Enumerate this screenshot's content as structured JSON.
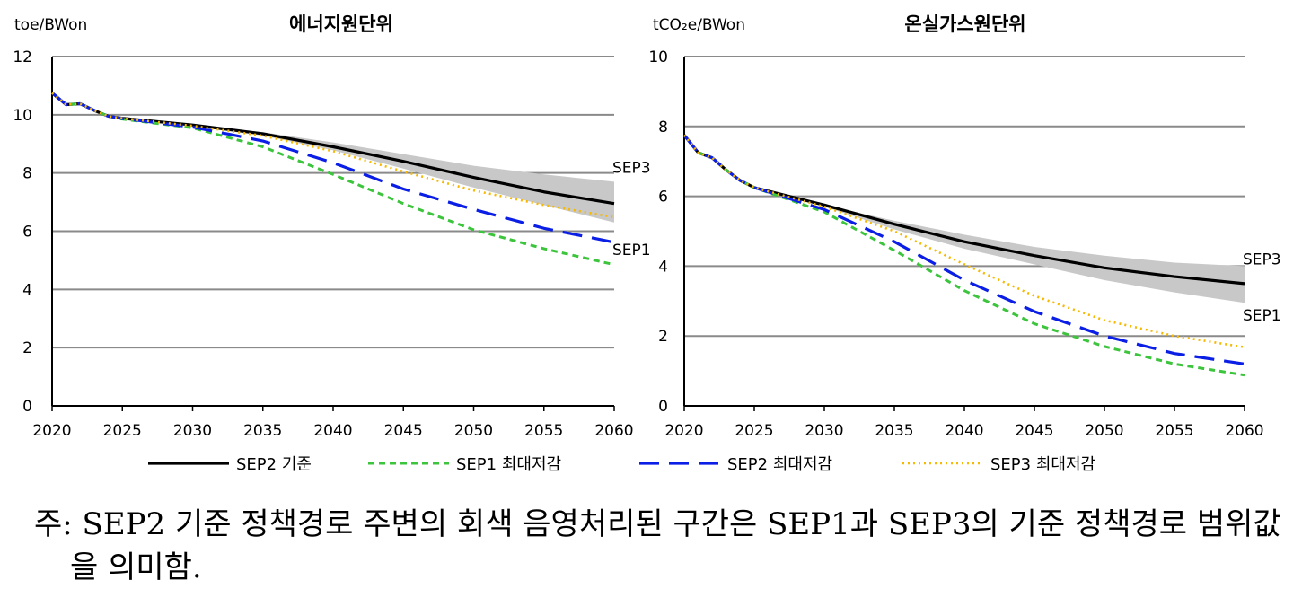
{
  "colors": {
    "SEP2 기준": "#000000",
    "SEP1 최대저감": "#3dc43d",
    "SEP2 최대저감": "#0a1ee6",
    "SEP3 최대저감": "#f6b800",
    "band": "#c8c8c8",
    "grid": "#8a8a8a"
  },
  "legend": [
    "SEP2 기준",
    "SEP1 최대저감",
    "SEP2 최대저감",
    "SEP3 최대저감"
  ],
  "chart_data": [
    {
      "type": "line",
      "title": "에너지원단위",
      "ylabel": "toe/BWon",
      "xlim": [
        2020,
        2060
      ],
      "ylim": [
        0,
        12
      ],
      "yticks": [
        0,
        2,
        4,
        6,
        8,
        10,
        12
      ],
      "xticks": [
        2020,
        2025,
        2030,
        2035,
        2040,
        2045,
        2050,
        2055,
        2060
      ],
      "grid": true,
      "annotations": [
        "SEP3",
        "SEP1"
      ],
      "band": {
        "x": [
          2020,
          2021,
          2022,
          2023,
          2024,
          2025,
          2030,
          2035,
          2040,
          2045,
          2050,
          2055,
          2060
        ],
        "upper": [
          10.75,
          10.35,
          10.38,
          10.15,
          9.95,
          9.88,
          9.66,
          9.4,
          9.05,
          8.65,
          8.25,
          7.95,
          7.7
        ],
        "lower": [
          10.75,
          10.35,
          10.38,
          10.15,
          9.95,
          9.88,
          9.6,
          9.28,
          8.78,
          8.15,
          7.5,
          6.9,
          6.3
        ]
      },
      "series": [
        {
          "name": "SEP2 기준",
          "x": [
            2020,
            2021,
            2022,
            2023,
            2024,
            2025,
            2030,
            2035,
            2040,
            2045,
            2050,
            2055,
            2060
          ],
          "values": [
            10.75,
            10.35,
            10.38,
            10.15,
            9.95,
            9.88,
            9.65,
            9.35,
            8.9,
            8.4,
            7.85,
            7.35,
            6.95
          ]
        },
        {
          "name": "SEP1 최대저감",
          "x": [
            2020,
            2021,
            2022,
            2023,
            2024,
            2025,
            2030,
            2035,
            2040,
            2045,
            2050,
            2055,
            2060
          ],
          "values": [
            10.75,
            10.35,
            10.38,
            10.15,
            9.95,
            9.85,
            9.55,
            8.9,
            7.95,
            6.95,
            6.05,
            5.4,
            4.85
          ]
        },
        {
          "name": "SEP2 최대저감",
          "x": [
            2020,
            2021,
            2022,
            2023,
            2024,
            2025,
            2030,
            2035,
            2040,
            2045,
            2050,
            2055,
            2060
          ],
          "values": [
            10.75,
            10.35,
            10.38,
            10.15,
            9.95,
            9.87,
            9.58,
            9.1,
            8.35,
            7.45,
            6.75,
            6.1,
            5.62
          ]
        },
        {
          "name": "SEP3 최대저감",
          "x": [
            2020,
            2021,
            2022,
            2023,
            2024,
            2025,
            2030,
            2035,
            2040,
            2045,
            2050,
            2055,
            2060
          ],
          "values": [
            10.75,
            10.35,
            10.38,
            10.15,
            9.95,
            9.88,
            9.62,
            9.28,
            8.75,
            8.05,
            7.4,
            6.9,
            6.48
          ]
        }
      ]
    },
    {
      "type": "line",
      "title": "온실가스원단위",
      "ylabel": "tCO₂e/BWon",
      "xlim": [
        2020,
        2060
      ],
      "ylim": [
        0,
        10
      ],
      "yticks": [
        0,
        2,
        4,
        6,
        8,
        10
      ],
      "xticks": [
        2020,
        2025,
        2030,
        2035,
        2040,
        2045,
        2050,
        2055,
        2060
      ],
      "grid": true,
      "annotations": [
        "SEP3",
        "SEP1"
      ],
      "band": {
        "x": [
          2020,
          2021,
          2022,
          2023,
          2024,
          2025,
          2030,
          2035,
          2040,
          2045,
          2050,
          2055,
          2060
        ],
        "upper": [
          7.75,
          7.25,
          7.1,
          6.75,
          6.45,
          6.25,
          5.75,
          5.3,
          4.9,
          4.55,
          4.3,
          4.1,
          4.0
        ],
        "lower": [
          7.75,
          7.25,
          7.1,
          6.75,
          6.45,
          6.25,
          5.7,
          5.05,
          4.5,
          4.05,
          3.6,
          3.25,
          2.95
        ]
      },
      "series": [
        {
          "name": "SEP2 기준",
          "x": [
            2020,
            2021,
            2022,
            2023,
            2024,
            2025,
            2030,
            2035,
            2040,
            2045,
            2050,
            2055,
            2060
          ],
          "values": [
            7.75,
            7.25,
            7.1,
            6.75,
            6.45,
            6.25,
            5.75,
            5.2,
            4.7,
            4.3,
            3.95,
            3.7,
            3.5
          ]
        },
        {
          "name": "SEP1 최대저감",
          "x": [
            2020,
            2021,
            2022,
            2023,
            2024,
            2025,
            2030,
            2035,
            2040,
            2045,
            2050,
            2055,
            2060
          ],
          "values": [
            7.75,
            7.25,
            7.1,
            6.75,
            6.45,
            6.25,
            5.55,
            4.45,
            3.3,
            2.35,
            1.7,
            1.2,
            0.88
          ]
        },
        {
          "name": "SEP2 최대저감",
          "x": [
            2020,
            2021,
            2022,
            2023,
            2024,
            2025,
            2030,
            2035,
            2040,
            2045,
            2050,
            2055,
            2060
          ],
          "values": [
            7.75,
            7.25,
            7.1,
            6.75,
            6.45,
            6.25,
            5.62,
            4.7,
            3.6,
            2.7,
            2.0,
            1.5,
            1.2
          ]
        },
        {
          "name": "SEP3 최대저감",
          "x": [
            2020,
            2021,
            2022,
            2023,
            2024,
            2025,
            2030,
            2035,
            2040,
            2045,
            2050,
            2055,
            2060
          ],
          "values": [
            7.75,
            7.25,
            7.1,
            6.75,
            6.45,
            6.25,
            5.7,
            5.0,
            4.05,
            3.15,
            2.45,
            2.0,
            1.68
          ]
        }
      ]
    }
  ],
  "note": {
    "line1": "주: SEP2 기준 정책경로 주변의 회색 음영처리된 구간은 SEP1과 SEP3의 기준 정책경로 범위값",
    "line2": "을 의미함."
  }
}
